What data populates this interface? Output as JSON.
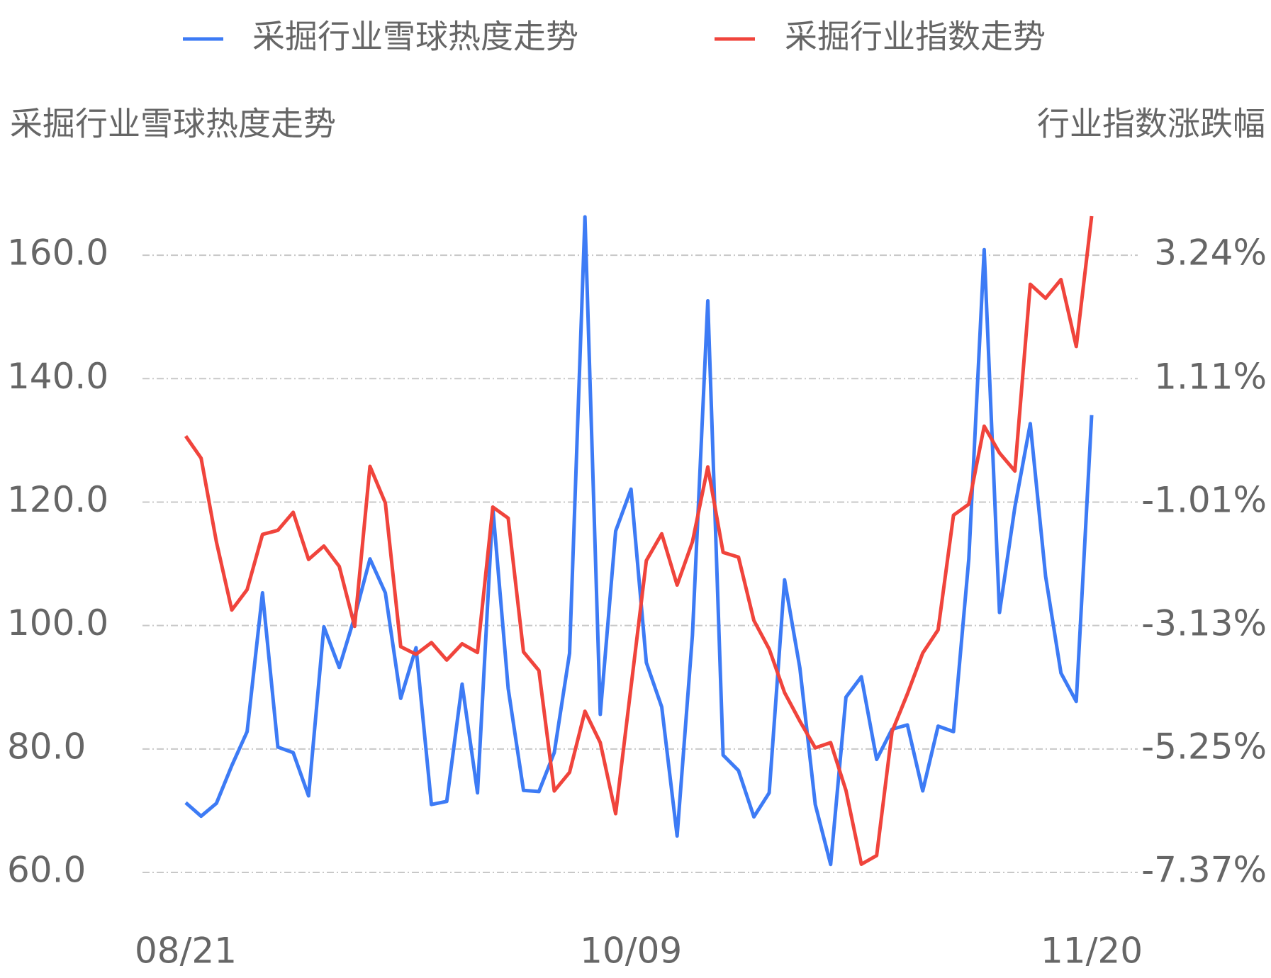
{
  "chart_data": {
    "type": "line",
    "y_label": "采掘行业雪球热度走势",
    "y2_label": "行业指数涨跌幅",
    "categories": [
      "08/21",
      null,
      null,
      null,
      null,
      null,
      null,
      null,
      null,
      null,
      null,
      null,
      null,
      null,
      null,
      null,
      null,
      null,
      null,
      null,
      null,
      null,
      null,
      null,
      null,
      null,
      null,
      null,
      null,
      "10/09",
      null,
      null,
      null,
      null,
      null,
      null,
      null,
      null,
      null,
      null,
      null,
      null,
      null,
      null,
      null,
      null,
      null,
      null,
      null,
      null,
      null,
      null,
      null,
      null,
      null,
      null,
      null,
      null,
      null,
      "11/20"
    ],
    "series": [
      {
        "name": "采掘行业雪球热度走势",
        "color": "#3d7bf5",
        "axis": "y",
        "values": [
          71.3,
          69.1,
          71.2,
          77.3,
          82.8,
          105.3,
          80.3,
          79.4,
          72.4,
          99.8,
          93.2,
          101.4,
          110.8,
          105.3,
          88.2,
          96.4,
          71.0,
          71.5,
          90.5,
          72.9,
          119.1,
          89.8,
          73.3,
          73.1,
          79.4,
          95.5,
          166.2,
          85.6,
          115.3,
          122.1,
          94.0,
          86.8,
          65.9,
          98.4,
          152.6,
          79.0,
          76.5,
          69.0,
          72.9,
          107.4,
          93.1,
          71.0,
          61.3,
          88.4,
          91.7,
          78.3,
          83.2,
          83.9,
          73.2,
          83.7,
          82.8,
          110.8,
          160.9,
          102.1,
          119.2,
          132.7,
          108.0,
          92.3,
          87.7,
          134.1
        ]
      },
      {
        "name": "采掘行业指数走势",
        "color": "#f0443c",
        "axis": "y2",
        "values": [
          0.13,
          -0.25,
          -1.69,
          -2.86,
          -2.51,
          -1.56,
          -1.49,
          -1.18,
          -1.99,
          -1.76,
          -2.11,
          -3.14,
          -0.39,
          -1.02,
          -3.49,
          -3.62,
          -3.42,
          -3.72,
          -3.44,
          -3.59,
          -1.09,
          -1.28,
          -3.58,
          -3.9,
          -5.97,
          -5.65,
          -4.6,
          -5.14,
          -6.36,
          -4.18,
          -2.01,
          -1.55,
          -2.43,
          -1.69,
          -0.4,
          -1.87,
          -1.95,
          -3.04,
          -3.53,
          -4.28,
          -4.77,
          -5.23,
          -5.14,
          -5.96,
          -7.23,
          -7.08,
          -4.95,
          -4.3,
          -3.6,
          -3.2,
          -1.23,
          -1.04,
          0.3,
          -0.16,
          -0.47,
          2.74,
          2.5,
          2.82,
          1.67,
          3.91
        ]
      }
    ],
    "ylim": [
      60,
      170
    ],
    "yticks": [
      {
        "value": 60,
        "label": "60.0"
      },
      {
        "value": 80,
        "label": "80.0"
      },
      {
        "value": 100,
        "label": "100.0"
      },
      {
        "value": 120,
        "label": "120.0"
      },
      {
        "value": 140,
        "label": "140.0"
      },
      {
        "value": 160,
        "label": "160.0"
      }
    ],
    "y2lim": [
      -7.37,
      4.3
    ],
    "y2ticks": [
      {
        "value": -7.37,
        "label": "-7.37%"
      },
      {
        "value": -5.25,
        "label": "-5.25%"
      },
      {
        "value": -3.13,
        "label": "-3.13%"
      },
      {
        "value": -1.01,
        "label": "-1.01%"
      },
      {
        "value": 1.11,
        "label": "1.11%"
      },
      {
        "value": 3.24,
        "label": "3.24%"
      }
    ],
    "grid": true
  }
}
